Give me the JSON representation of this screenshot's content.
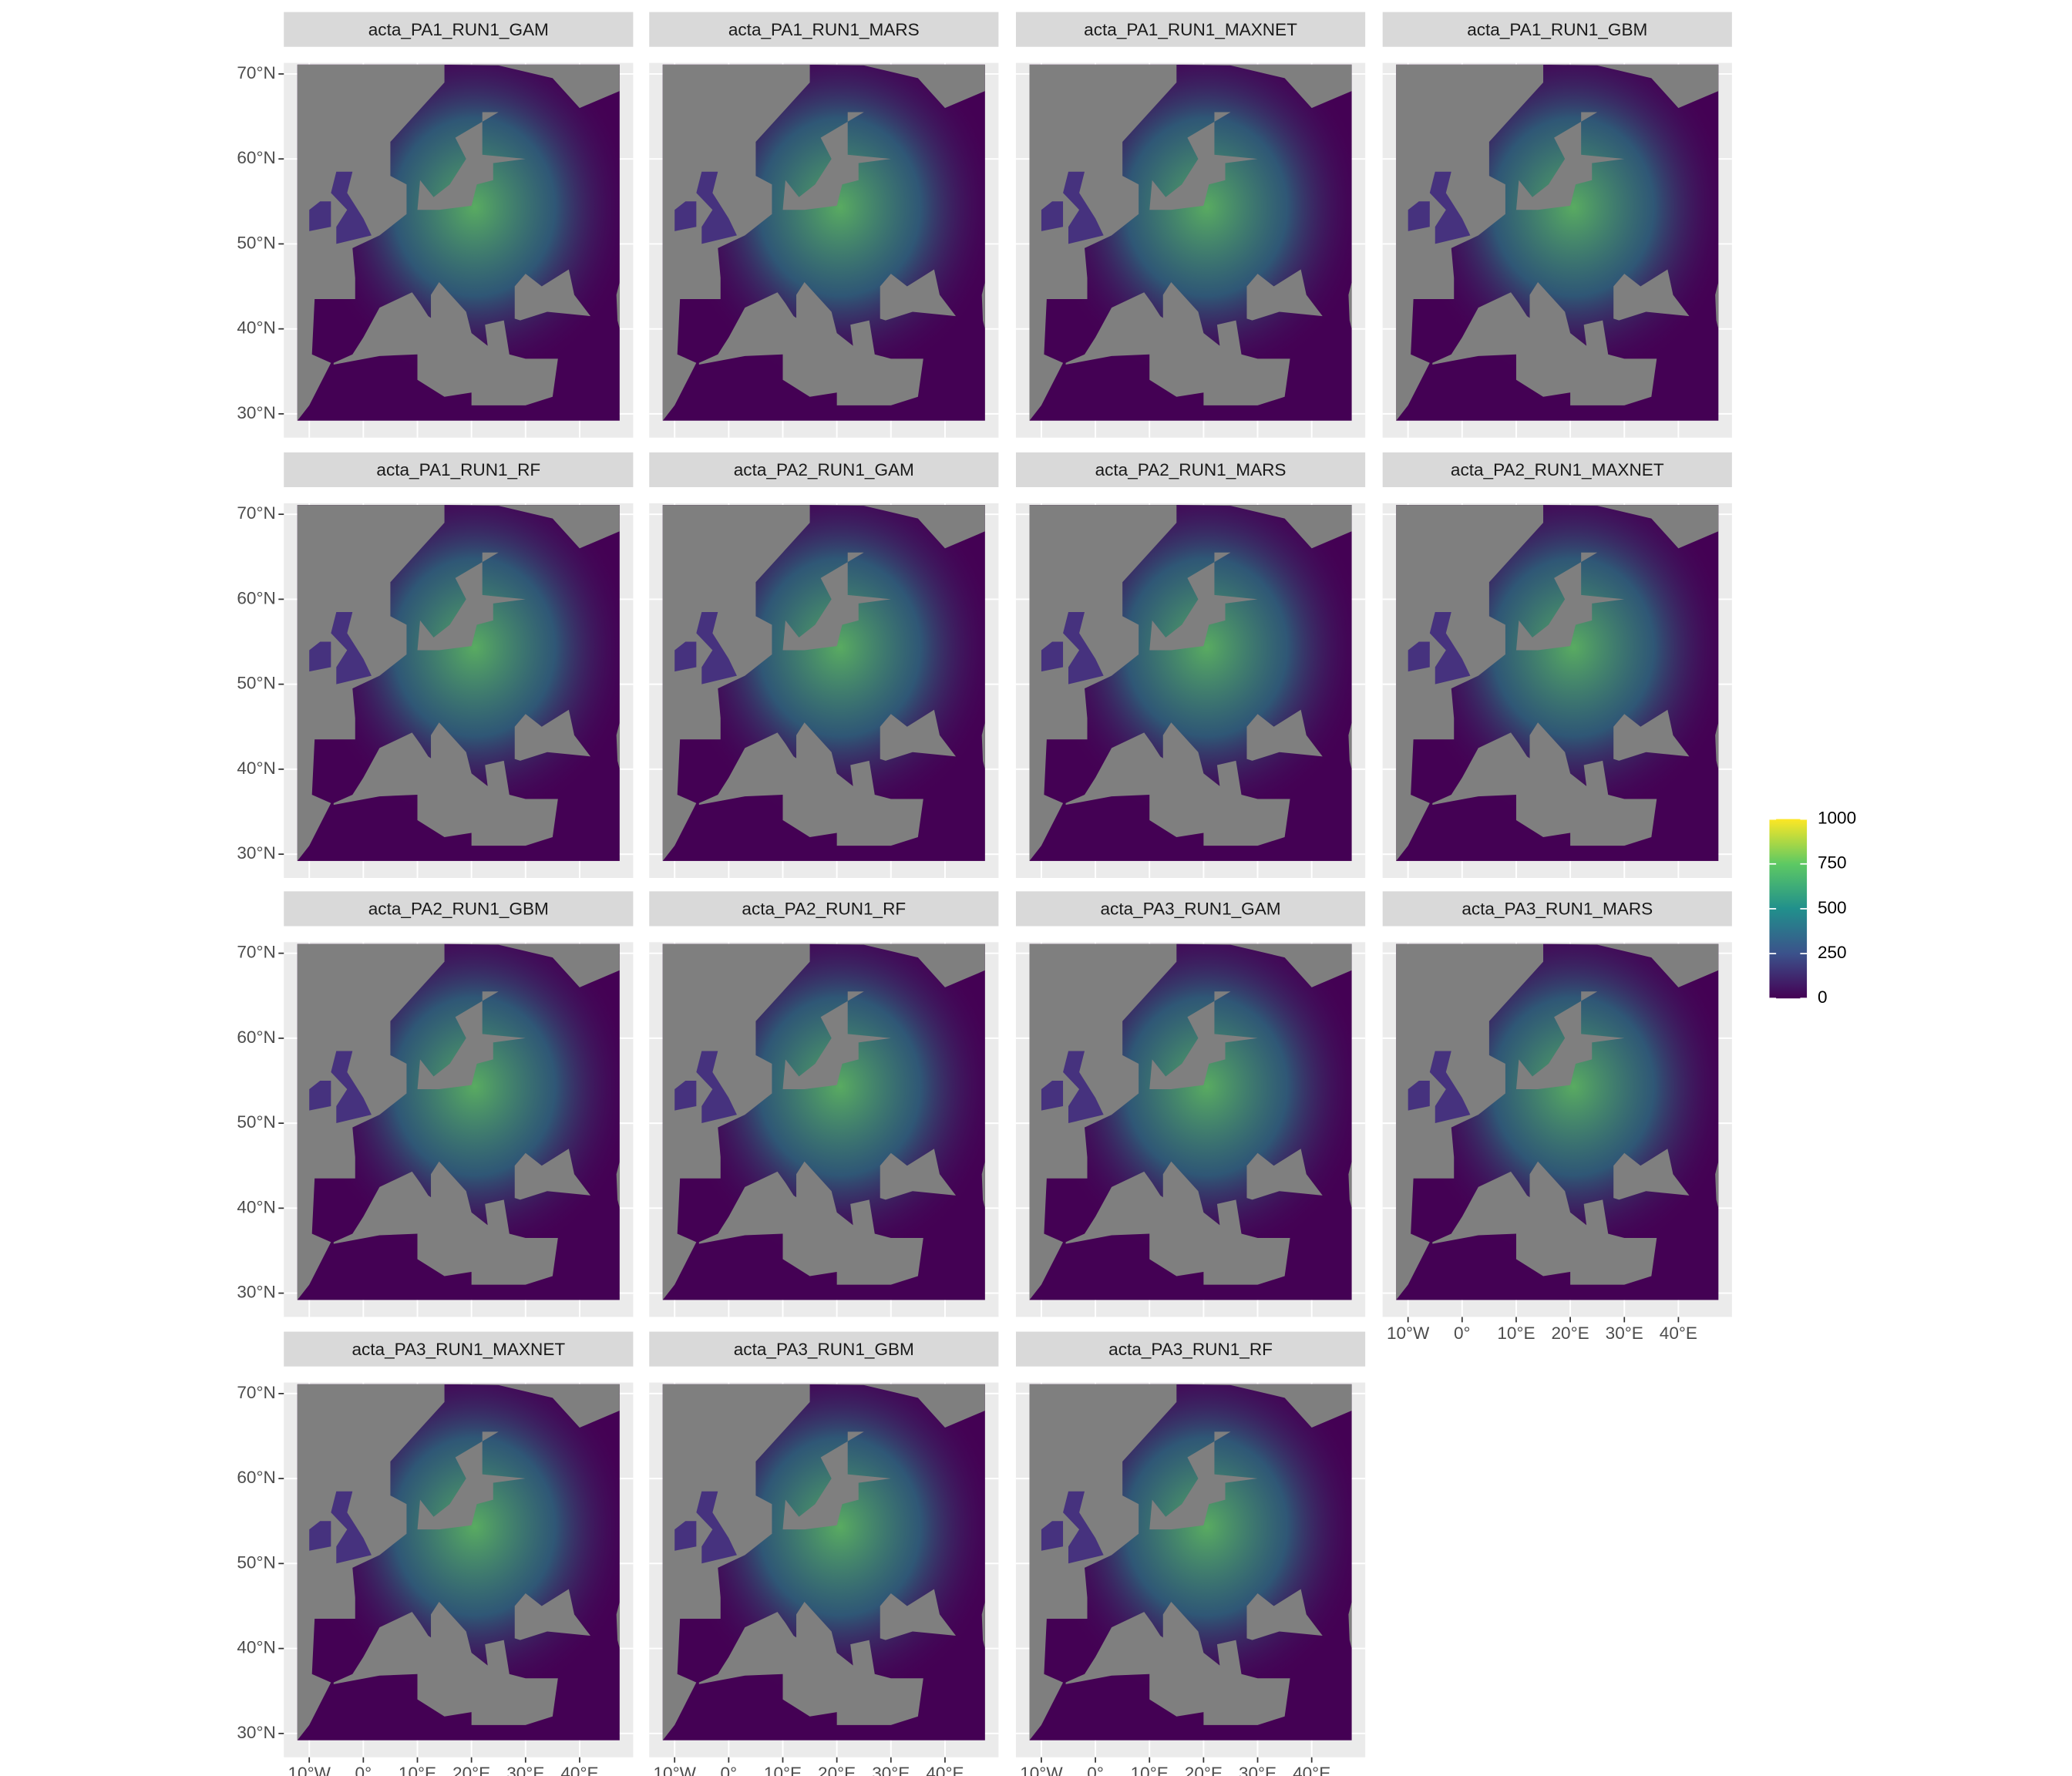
{
  "chart_data": {
    "type": "raster",
    "panels": [
      "acta_PA1_RUN1_GAM",
      "acta_PA1_RUN1_MARS",
      "acta_PA1_RUN1_MAXNET",
      "acta_PA1_RUN1_GBM",
      "acta_PA1_RUN1_RF",
      "acta_PA2_RUN1_GAM",
      "acta_PA2_RUN1_MARS",
      "acta_PA2_RUN1_MAXNET",
      "acta_PA2_RUN1_GBM",
      "acta_PA2_RUN1_RF",
      "acta_PA3_RUN1_GAM",
      "acta_PA3_RUN1_MARS",
      "acta_PA3_RUN1_MAXNET",
      "acta_PA3_RUN1_GBM",
      "acta_PA3_RUN1_RF"
    ],
    "ncol": 4,
    "xlim": [
      -14.7,
      49.9
    ],
    "ylim": [
      27.2,
      71.3
    ],
    "xticks": [
      {
        "value": -10,
        "label": "10°W"
      },
      {
        "value": 0,
        "label": "0°"
      },
      {
        "value": 10,
        "label": "10°E"
      },
      {
        "value": 20,
        "label": "20°E"
      },
      {
        "value": 30,
        "label": "30°E"
      },
      {
        "value": 40,
        "label": "40°E"
      }
    ],
    "yticks": [
      {
        "value": 30,
        "label": "30°N"
      },
      {
        "value": 40,
        "label": "40°N"
      },
      {
        "value": 50,
        "label": "50°N"
      },
      {
        "value": 60,
        "label": "60°N"
      },
      {
        "value": 70,
        "label": "70°N"
      }
    ],
    "fill_scale": {
      "colors": [
        "#440154",
        "#3b528b",
        "#21908c",
        "#5dc963",
        "#fde725"
      ],
      "limits": [
        0,
        1000
      ],
      "ticks": [
        0,
        250,
        500,
        750,
        1000
      ]
    }
  }
}
